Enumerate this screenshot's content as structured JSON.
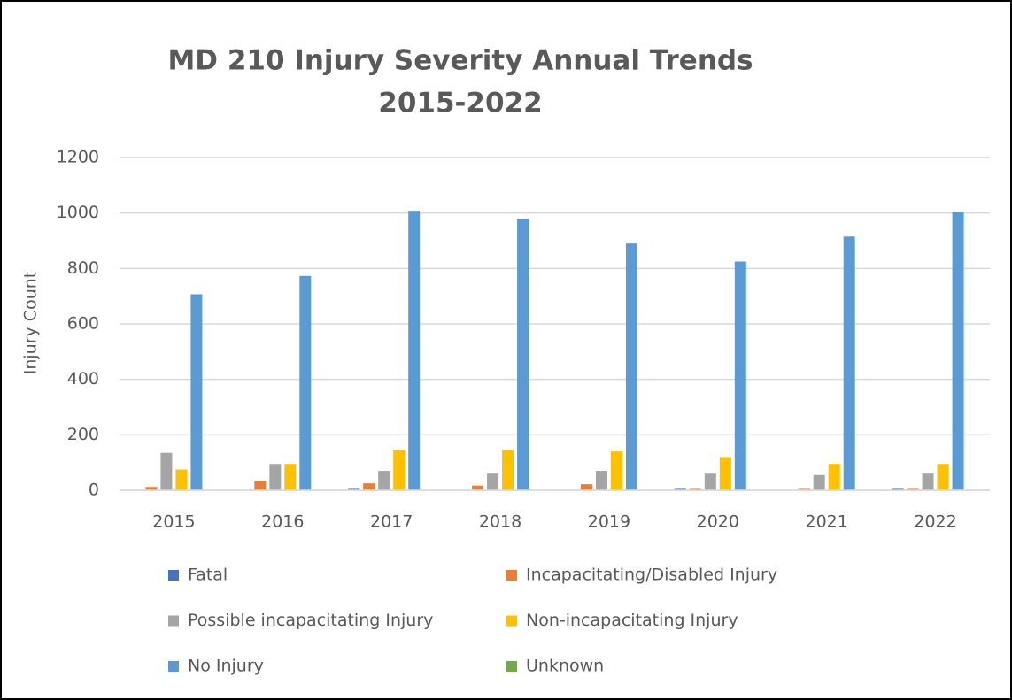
{
  "chart_data": {
    "type": "bar",
    "title": [
      "MD 210 Injury Severity Annual Trends",
      "2015-2022"
    ],
    "y_label": "Injury Count",
    "categories": [
      "2015",
      "2016",
      "2017",
      "2018",
      "2019",
      "2020",
      "2021",
      "2022"
    ],
    "series": [
      {
        "name": "Fatal",
        "color": "#4472c4",
        "values": [
          0,
          0,
          5,
          0,
          0,
          5,
          0,
          5
        ]
      },
      {
        "name": "Incapacitating/Disabled Injury",
        "color": "#ed7d31",
        "values": [
          12,
          35,
          25,
          17,
          22,
          5,
          5,
          5
        ]
      },
      {
        "name": "Possible incapacitating Injury",
        "color": "#a5a5a5",
        "values": [
          135,
          95,
          70,
          60,
          70,
          60,
          55,
          60
        ]
      },
      {
        "name": "Non-incapacitating Injury",
        "color": "#ffc000",
        "values": [
          75,
          95,
          145,
          145,
          140,
          120,
          95,
          95
        ]
      },
      {
        "name": "No Injury",
        "color": "#5b9bd5",
        "values": [
          707,
          773,
          1008,
          980,
          890,
          825,
          915,
          1003
        ]
      },
      {
        "name": "Unknown",
        "color": "#70ad47",
        "values": [
          0,
          0,
          0,
          0,
          0,
          0,
          0,
          0
        ]
      }
    ],
    "ylim": [
      0,
      1200
    ],
    "yticks": [
      0,
      200,
      400,
      600,
      800,
      1000,
      1200
    ],
    "grid": true,
    "legend": "bottom"
  }
}
